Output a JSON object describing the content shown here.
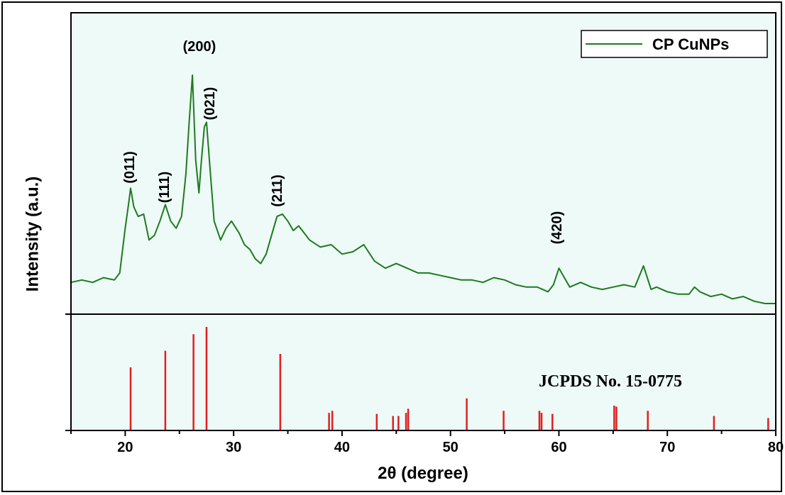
{
  "chart_data": {
    "type": "line",
    "xlabel": "2θ (degree)",
    "ylabel": "Intensity (a.u.)",
    "xlim": [
      15,
      80
    ],
    "x_ticks": [
      20,
      30,
      40,
      50,
      60,
      70,
      80
    ],
    "grid": false,
    "legend_position": "top-right",
    "colors": {
      "pattern": "#1e7a1e",
      "reference": "#e31e1e",
      "background": "#eefaf8"
    },
    "series": [
      {
        "name": "CP CuNPs",
        "x": [
          15.0,
          16.0,
          17.0,
          18.0,
          19.0,
          19.5,
          20.0,
          20.3,
          20.5,
          20.8,
          21.2,
          21.7,
          22.2,
          22.7,
          23.2,
          23.7,
          24.2,
          24.7,
          25.2,
          25.6,
          25.9,
          26.2,
          26.5,
          26.8,
          27.0,
          27.3,
          27.5,
          27.8,
          28.2,
          28.8,
          29.3,
          29.8,
          30.5,
          31.0,
          31.5,
          32.0,
          32.5,
          33.0,
          33.5,
          34.0,
          34.5,
          35.0,
          35.5,
          36.0,
          37.0,
          38.0,
          39.0,
          40.0,
          41.0,
          42.0,
          43.0,
          44.0,
          45.0,
          46.0,
          47.0,
          48.0,
          49.0,
          50.0,
          51.0,
          52.0,
          53.0,
          54.0,
          55.0,
          56.0,
          57.0,
          58.0,
          59.0,
          59.5,
          60.0,
          61.0,
          62.0,
          63.0,
          64.0,
          65.0,
          66.0,
          67.0,
          67.8,
          68.5,
          69.0,
          70.0,
          71.0,
          72.0,
          72.5,
          73.0,
          74.0,
          75.0,
          76.0,
          77.0,
          78.0,
          79.0,
          80.0
        ],
        "y": [
          12,
          13,
          12,
          14,
          13,
          16,
          35,
          45,
          52,
          44,
          40,
          41,
          30,
          32,
          38,
          45,
          38,
          35,
          40,
          58,
          80,
          100,
          64,
          50,
          62,
          78,
          80,
          62,
          38,
          30,
          35,
          38,
          33,
          28,
          26,
          22,
          20,
          24,
          32,
          40,
          41,
          38,
          34,
          36,
          30,
          27,
          28,
          24,
          25,
          28,
          21,
          18,
          20,
          18,
          16,
          16,
          15,
          14,
          13,
          13,
          12,
          14,
          13,
          11,
          10,
          10,
          8,
          11,
          18,
          10,
          12,
          10,
          9,
          10,
          11,
          10,
          19,
          9,
          10,
          8,
          7,
          7,
          10,
          8,
          6,
          7,
          5,
          6,
          4,
          3,
          3
        ]
      },
      {
        "name": "JCPDS No. 15-0775",
        "x": [
          20.5,
          23.7,
          26.3,
          27.5,
          34.3,
          38.8,
          39.1,
          43.2,
          44.7,
          45.2,
          45.9,
          46.1,
          51.5,
          54.9,
          58.2,
          58.4,
          59.4,
          65.1,
          65.3,
          68.2,
          74.3,
          79.3
        ],
        "y": [
          61,
          77,
          93,
          100,
          74,
          17,
          19,
          16,
          14,
          14,
          17,
          21,
          31,
          19,
          19,
          17,
          16,
          24,
          23,
          19,
          14,
          12
        ]
      }
    ],
    "annotations": [
      {
        "text": "(200)",
        "x": 26.3
      },
      {
        "text": "(021)",
        "x": 27.5
      },
      {
        "text": "(011)",
        "x": 20.5
      },
      {
        "text": "(111)",
        "x": 23.7
      },
      {
        "text": "(211)",
        "x": 34.3
      },
      {
        "text": "(420)",
        "x": 59.5
      }
    ]
  }
}
